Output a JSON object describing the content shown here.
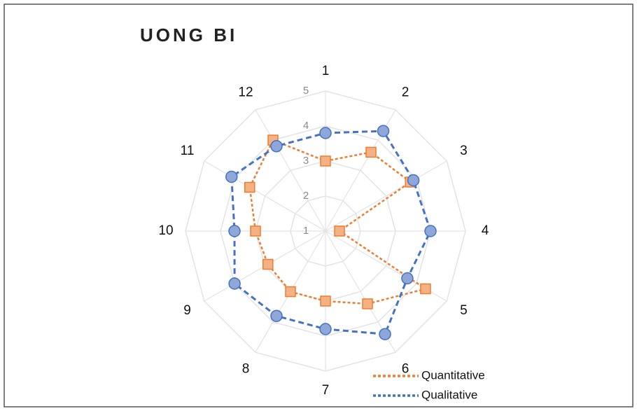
{
  "chart_data": {
    "type": "radar",
    "title": "UONG BI",
    "categories": [
      "1",
      "2",
      "3",
      "4",
      "5",
      "6",
      "7",
      "8",
      "9",
      "10",
      "11",
      "12"
    ],
    "rlim": [
      1,
      5
    ],
    "rticks": [
      1,
      2,
      3,
      4,
      5
    ],
    "grid": true,
    "legend": "bottom-right",
    "series": [
      {
        "name": "Quantitative",
        "color": "#ED7D31",
        "marker": "square",
        "values": [
          3.0,
          3.6,
          3.8,
          1.4,
          4.3,
          3.4,
          3.0,
          3.0,
          2.9,
          3.0,
          3.5,
          4.0
        ]
      },
      {
        "name": "Qualitative",
        "color": "#4472C4",
        "marker": "circle",
        "values": [
          3.8,
          4.3,
          3.9,
          4.0,
          3.7,
          4.4,
          3.8,
          3.8,
          4.0,
          3.6,
          4.1,
          3.8
        ]
      }
    ]
  }
}
